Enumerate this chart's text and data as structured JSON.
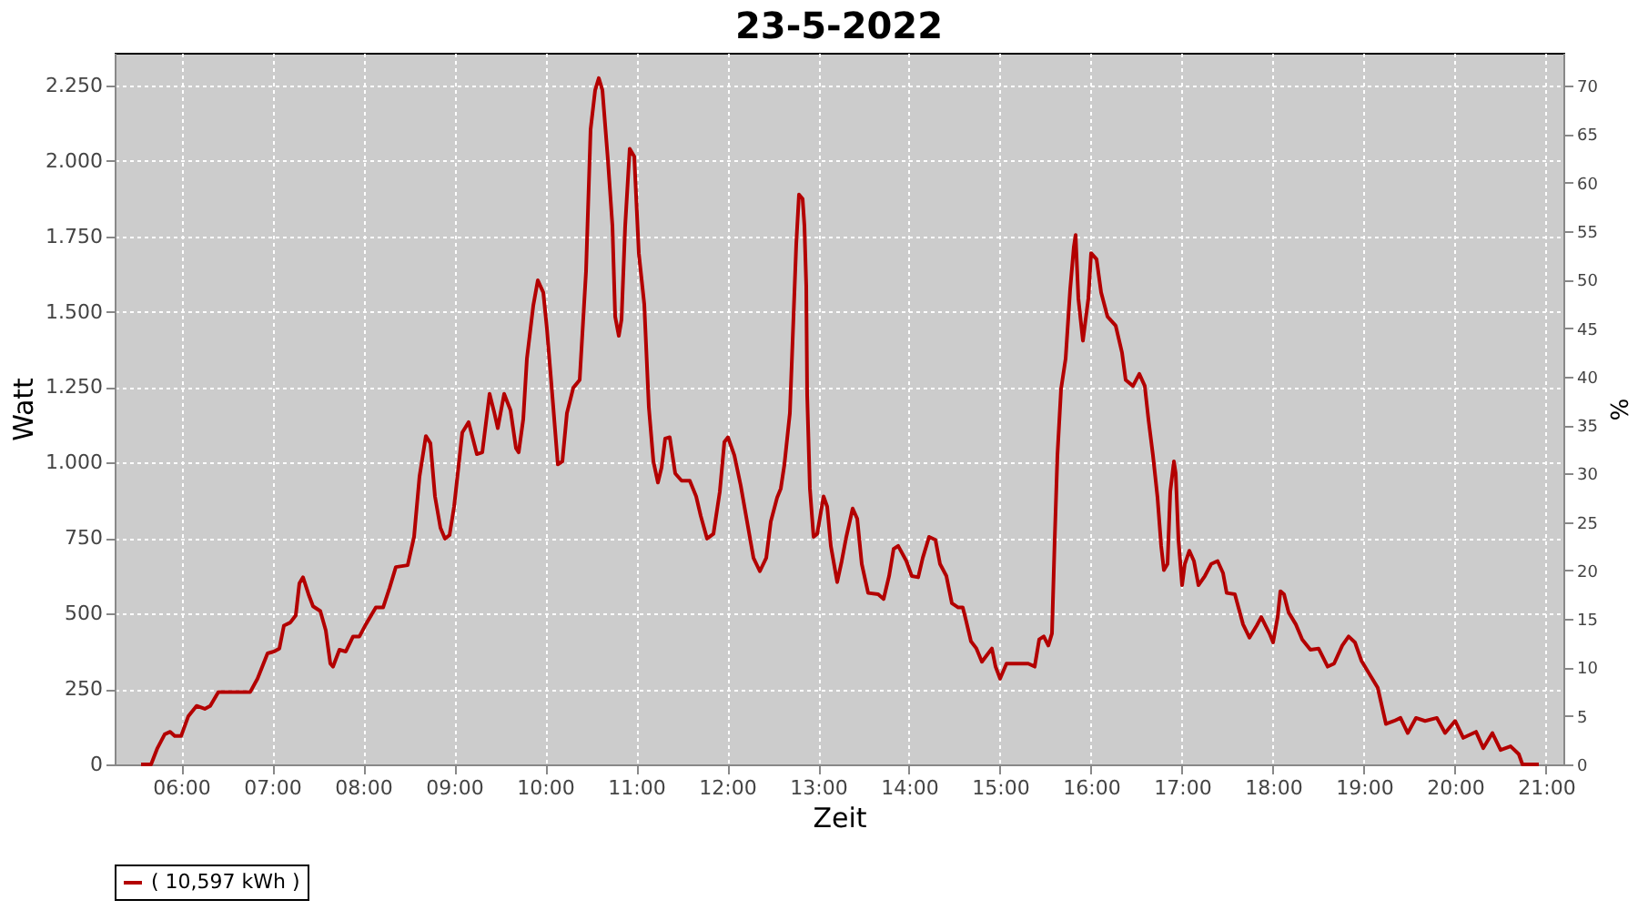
{
  "chart_data": {
    "type": "line",
    "title": "23-5-2022",
    "xlabel": "Zeit",
    "ylabel": "Watt",
    "y2label": "%",
    "xlim": [
      5.27,
      21.19
    ],
    "xticks": [
      {
        "value": 6,
        "label": "06:00"
      },
      {
        "value": 7,
        "label": "07:00"
      },
      {
        "value": 8,
        "label": "08:00"
      },
      {
        "value": 9,
        "label": "09:00"
      },
      {
        "value": 10,
        "label": "10:00"
      },
      {
        "value": 11,
        "label": "11:00"
      },
      {
        "value": 12,
        "label": "12:00"
      },
      {
        "value": 13,
        "label": "13:00"
      },
      {
        "value": 14,
        "label": "14:00"
      },
      {
        "value": 15,
        "label": "15:00"
      },
      {
        "value": 16,
        "label": "16:00"
      },
      {
        "value": 17,
        "label": "17:00"
      },
      {
        "value": 18,
        "label": "18:00"
      },
      {
        "value": 19,
        "label": "19:00"
      },
      {
        "value": 20,
        "label": "20:00"
      },
      {
        "value": 21,
        "label": "21:00"
      }
    ],
    "ylim": [
      0,
      2358
    ],
    "yticks": [
      0,
      {
        "value": 250,
        "label": "250"
      },
      {
        "value": 500,
        "label": "500"
      },
      {
        "value": 750,
        "label": "750"
      },
      {
        "value": 1000,
        "label": "1.000"
      },
      {
        "value": 1250,
        "label": "1.250"
      },
      {
        "value": 1500,
        "label": "1.500"
      },
      {
        "value": 1750,
        "label": "1.750"
      },
      {
        "value": 2000,
        "label": "2.000"
      },
      {
        "value": 2250,
        "label": "2.250"
      }
    ],
    "y2lim": [
      0,
      73.4
    ],
    "y2ticks": [
      0,
      5,
      10,
      15,
      20,
      25,
      30,
      35,
      40,
      45,
      50,
      55,
      60,
      65,
      70
    ],
    "grid": true,
    "legend": "bottom",
    "marker": "none",
    "line_style": "solid",
    "series": [
      {
        "name": "( 10,597 kWh )",
        "color": "#b30000",
        "x": [
          5.56,
          5.67,
          5.74,
          5.82,
          5.88,
          5.93,
          6.0,
          6.08,
          6.17,
          6.26,
          6.32,
          6.41,
          6.5,
          6.76,
          6.84,
          6.95,
          7.02,
          7.08,
          7.13,
          7.2,
          7.26,
          7.3,
          7.34,
          7.4,
          7.45,
          7.53,
          7.59,
          7.64,
          7.67,
          7.74,
          7.81,
          7.89,
          7.96,
          8.03,
          8.14,
          8.22,
          8.29,
          8.36,
          8.49,
          8.56,
          8.62,
          8.69,
          8.74,
          8.79,
          8.85,
          8.9,
          8.95,
          9.0,
          9.09,
          9.16,
          9.25,
          9.31,
          9.39,
          9.44,
          9.48,
          9.55,
          9.62,
          9.68,
          9.71,
          9.76,
          9.8,
          9.87,
          9.92,
          9.98,
          10.02,
          10.09,
          10.14,
          10.19,
          10.24,
          10.31,
          10.38,
          10.45,
          10.5,
          10.55,
          10.59,
          10.63,
          10.69,
          10.74,
          10.77,
          10.81,
          10.84,
          10.88,
          10.93,
          10.98,
          11.03,
          11.09,
          11.14,
          11.19,
          11.24,
          11.28,
          11.32,
          11.37,
          11.43,
          11.5,
          11.59,
          11.66,
          11.71,
          11.78,
          11.85,
          11.92,
          11.97,
          12.01,
          12.08,
          12.15,
          12.22,
          12.29,
          12.36,
          12.43,
          12.48,
          12.55,
          12.59,
          12.63,
          12.69,
          12.73,
          12.76,
          12.79,
          12.83,
          12.85,
          12.87,
          12.88,
          12.91,
          12.95,
          12.99,
          13.06,
          13.1,
          13.14,
          13.21,
          13.26,
          13.31,
          13.38,
          13.43,
          13.48,
          13.55,
          13.66,
          13.72,
          13.78,
          13.83,
          13.88,
          13.97,
          14.03,
          14.1,
          14.15,
          14.22,
          14.29,
          14.34,
          14.41,
          14.47,
          14.54,
          14.59,
          14.62,
          14.68,
          14.74,
          14.8,
          14.86,
          14.91,
          14.95,
          15.0,
          15.07,
          15.14,
          15.23,
          15.31,
          15.38,
          15.43,
          15.48,
          15.53,
          15.57,
          15.6,
          15.63,
          15.67,
          15.72,
          15.77,
          15.81,
          15.83,
          15.86,
          15.91,
          15.97,
          16.0,
          16.06,
          16.11,
          16.18,
          16.27,
          16.34,
          16.38,
          16.46,
          16.53,
          16.59,
          16.63,
          16.68,
          16.73,
          16.77,
          16.8,
          16.84,
          16.87,
          16.91,
          16.93,
          16.96,
          17.0,
          17.03,
          17.08,
          17.13,
          17.18,
          17.25,
          17.32,
          17.39,
          17.45,
          17.49,
          17.58,
          17.67,
          17.74,
          17.82,
          17.87,
          17.96,
          18.0,
          18.05,
          18.08,
          18.12,
          18.17,
          18.25,
          18.32,
          18.41,
          18.5,
          18.55,
          18.6,
          18.67,
          18.76,
          18.83,
          18.9,
          18.97,
          19.05,
          19.15,
          19.24,
          19.33,
          19.4,
          19.48,
          19.57,
          19.67,
          19.8,
          19.89,
          20.0,
          20.09,
          20.23,
          20.31,
          20.41,
          20.5,
          20.61,
          20.7,
          20.74,
          20.92
        ],
        "values": [
          0,
          0,
          54,
          100,
          108,
          94,
          94,
          160,
          194,
          184,
          194,
          240,
          240,
          240,
          284,
          368,
          374,
          384,
          460,
          470,
          494,
          600,
          620,
          564,
          524,
          508,
          444,
          334,
          324,
          380,
          374,
          424,
          424,
          464,
          520,
          520,
          584,
          654,
          660,
          754,
          954,
          1088,
          1064,
          888,
          784,
          748,
          760,
          854,
          1100,
          1134,
          1028,
          1034,
          1228,
          1168,
          1114,
          1228,
          1174,
          1048,
          1034,
          1144,
          1344,
          1520,
          1604,
          1564,
          1444,
          1184,
          994,
          1004,
          1164,
          1248,
          1274,
          1634,
          2104,
          2234,
          2274,
          2234,
          2004,
          1784,
          1484,
          1420,
          1474,
          1784,
          2040,
          2014,
          1694,
          1524,
          1184,
          1004,
          934,
          984,
          1080,
          1084,
          964,
          940,
          940,
          888,
          824,
          748,
          764,
          904,
          1068,
          1084,
          1024,
          924,
          804,
          684,
          640,
          684,
          804,
          884,
          914,
          994,
          1164,
          1484,
          1724,
          1888,
          1874,
          1784,
          1584,
          1224,
          914,
          754,
          764,
          888,
          854,
          724,
          604,
          674,
          754,
          848,
          814,
          664,
          568,
          564,
          548,
          624,
          714,
          724,
          674,
          624,
          620,
          684,
          754,
          744,
          664,
          624,
          534,
          520,
          520,
          484,
          408,
          384,
          340,
          364,
          384,
          324,
          284,
          334,
          334,
          334,
          334,
          324,
          414,
          424,
          394,
          434,
          744,
          1024,
          1244,
          1344,
          1574,
          1714,
          1754,
          1544,
          1404,
          1544,
          1694,
          1674,
          1564,
          1484,
          1454,
          1364,
          1274,
          1254,
          1294,
          1254,
          1144,
          1024,
          884,
          724,
          644,
          664,
          904,
          1004,
          964,
          744,
          594,
          664,
          708,
          674,
          594,
          624,
          664,
          674,
          634,
          568,
          564,
          464,
          420,
          460,
          488,
          434,
          404,
          488,
          574,
          564,
          504,
          464,
          414,
          380,
          384,
          354,
          324,
          334,
          394,
          424,
          404,
          344,
          304,
          254,
          134,
          144,
          154,
          104,
          154,
          144,
          154,
          104,
          144,
          88,
          108,
          54,
          104,
          48,
          60,
          34,
          0,
          0
        ]
      }
    ]
  }
}
